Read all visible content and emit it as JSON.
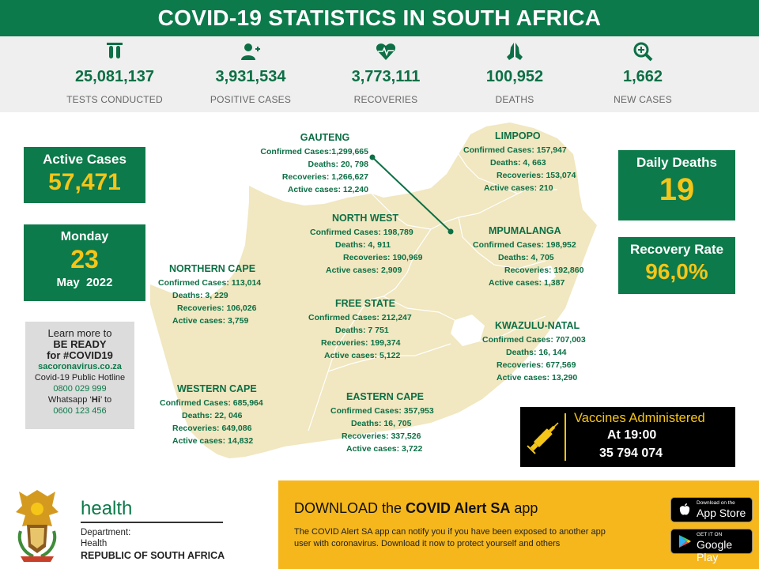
{
  "title": "COVID-19 STATISTICS IN SOUTH AFRICA",
  "stats": [
    {
      "icon": "test-tubes-icon",
      "value": "25,081,137",
      "label": "TESTS CONDUCTED"
    },
    {
      "icon": "add-user-icon",
      "value": "3,931,534",
      "label": "POSITIVE CASES"
    },
    {
      "icon": "heartbeat-icon",
      "value": "3,773,111",
      "label": "RECOVERIES"
    },
    {
      "icon": "praying-hands-icon",
      "value": "100,952",
      "label": "DEATHS"
    },
    {
      "icon": "magnify-plus-icon",
      "value": "1,662",
      "label": "NEW CASES"
    }
  ],
  "active_cases": {
    "label": "Active Cases",
    "value": "57,471"
  },
  "date": {
    "weekday": "Monday",
    "day": "23",
    "month_year": "May  2022"
  },
  "ready": {
    "line1": "Learn more to",
    "line2": "BE READY",
    "line3": "for #COVID19",
    "website": "sacoronavirus.co.za",
    "hotline_label": "Covid-19 Public Hotline",
    "hotline": "0800 029 999",
    "whatsapp_pre": "Whatsapp ‘",
    "whatsapp_hi": "Hi",
    "whatsapp_post": "’ to",
    "whatsapp_number": "0600 123 456"
  },
  "daily_deaths": {
    "label": "Daily Deaths",
    "value": "19"
  },
  "recovery_rate": {
    "label": "Recovery Rate",
    "value": "96,0%"
  },
  "vaccines": {
    "label": "Vaccines Administered",
    "at": "At 19:00",
    "value": "35 794 074"
  },
  "provinces": {
    "gauteng": {
      "name": "GAUTENG",
      "confirmed": "Confirmed Cases:1,299,665",
      "deaths": "Deaths: 20, 798",
      "recoveries": "Recoveries: 1,266,627",
      "active": "Active cases: 12,240"
    },
    "limpopo": {
      "name": "LIMPOPO",
      "confirmed": "Confirmed Cases: 157,947",
      "deaths": "Deaths: 4, 663",
      "recoveries": "Recoveries: 153,074",
      "active": "Active cases: 210"
    },
    "north_west": {
      "name": "NORTH WEST",
      "confirmed": "Confirmed Cases: 198,789",
      "deaths": "Deaths:  4, 911",
      "recoveries": "Recoveries: 190,969",
      "active": "Active cases: 2,909"
    },
    "mpumalanga": {
      "name": "MPUMALANGA",
      "confirmed": "Confirmed Cases: 198,952",
      "deaths": "Deaths: 4, 705",
      "recoveries": "Recoveries: 192,860",
      "active": "Active cases: 1,387"
    },
    "northern_cape": {
      "name": "NORTHERN CAPE",
      "confirmed": "Confirmed Cases: 113,014",
      "deaths": "Deaths: 3, 229",
      "recoveries": "Recoveries: 106,026",
      "active": "Active cases: 3,759"
    },
    "free_state": {
      "name": "FREE STATE",
      "confirmed": "Confirmed Cases: 212,247",
      "deaths": "Deaths:  7 751",
      "recoveries": "Recoveries: 199,374",
      "active": "Active cases: 5,122"
    },
    "kwazulu_natal": {
      "name": "KWAZULU-NATAL",
      "confirmed": "Confirmed Cases: 707,003",
      "deaths": "Deaths: 16, 144",
      "recoveries": "Recoveries: 677,569",
      "active": "Active cases: 13,290"
    },
    "western_cape": {
      "name": "WESTERN CAPE",
      "confirmed": "Confirmed Cases: 685,964",
      "deaths": "Deaths: 22, 046",
      "recoveries": "Recoveries: 649,086",
      "active": "Active cases: 14,832"
    },
    "eastern_cape": {
      "name": "EASTERN CAPE",
      "confirmed": "Confirmed Cases: 357,953",
      "deaths": "Deaths: 16, 705",
      "recoveries": "Recoveries: 337,526",
      "active": "Active cases: 3,722"
    }
  },
  "footer": {
    "health": "health",
    "dept_line1": "Department:",
    "dept_line2": "Health",
    "rsa": "REPUBLIC OF SOUTH AFRICA"
  },
  "app": {
    "title_pre": "DOWNLOAD the ",
    "title_bold": "COVID Alert SA",
    "title_post": " app",
    "desc1": "The COVID Alert SA app can notify you if you have been exposed to another app",
    "desc2": "user with coronavirus. Download it now to protect yourself and others",
    "apple_small": "Download on the",
    "apple_big": "App Store",
    "google_small": "GET IT ON",
    "google_big": "Google Play"
  },
  "colors": {
    "green": "#0c7a4a",
    "yellow": "#f5c518",
    "map": "#f1e7c0",
    "band": "#f5b71c"
  }
}
